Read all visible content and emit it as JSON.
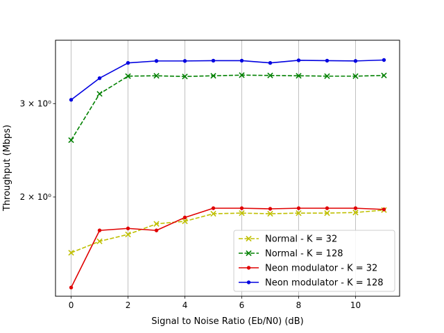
{
  "chart_data": {
    "type": "line",
    "title": "",
    "xlabel": "Signal to Noise Ratio (Eb/N0) (dB)",
    "ylabel": "Throughput (Mbps)",
    "yscale": "log",
    "xlim": [
      -0.55,
      11.55
    ],
    "ylim": [
      1.3,
      3.95
    ],
    "x_ticks": [
      0,
      2,
      4,
      6,
      8,
      10
    ],
    "y_ticks": [
      {
        "value": 2,
        "label": "2 × 10⁰"
      },
      {
        "value": 3,
        "label": "3 × 10⁰"
      }
    ],
    "grid": "vertical",
    "legend_position": "bottom-right",
    "x": [
      0,
      1,
      2,
      3,
      4,
      5,
      6,
      7,
      8,
      9,
      10,
      11
    ],
    "series": [
      {
        "name": "Normal - K = 32",
        "color": "#bfbf00",
        "linestyle": "dashed",
        "marker": "x",
        "values": [
          1.57,
          1.65,
          1.7,
          1.78,
          1.8,
          1.86,
          1.865,
          1.86,
          1.865,
          1.865,
          1.87,
          1.89
        ]
      },
      {
        "name": "Normal - K = 128",
        "color": "#008000",
        "linestyle": "dashed",
        "marker": "x",
        "values": [
          2.56,
          3.13,
          3.38,
          3.385,
          3.375,
          3.385,
          3.395,
          3.39,
          3.385,
          3.38,
          3.38,
          3.39
        ]
      },
      {
        "name": "Neon modulator - K = 32",
        "color": "#e00000",
        "linestyle": "solid",
        "marker": "dot",
        "values": [
          1.35,
          1.73,
          1.745,
          1.73,
          1.83,
          1.905,
          1.905,
          1.9,
          1.905,
          1.905,
          1.905,
          1.895
        ]
      },
      {
        "name": "Neon modulator - K = 128",
        "color": "#0000e0",
        "linestyle": "solid",
        "marker": "dot",
        "values": [
          3.05,
          3.35,
          3.58,
          3.61,
          3.61,
          3.615,
          3.615,
          3.58,
          3.62,
          3.615,
          3.61,
          3.625
        ]
      }
    ]
  }
}
